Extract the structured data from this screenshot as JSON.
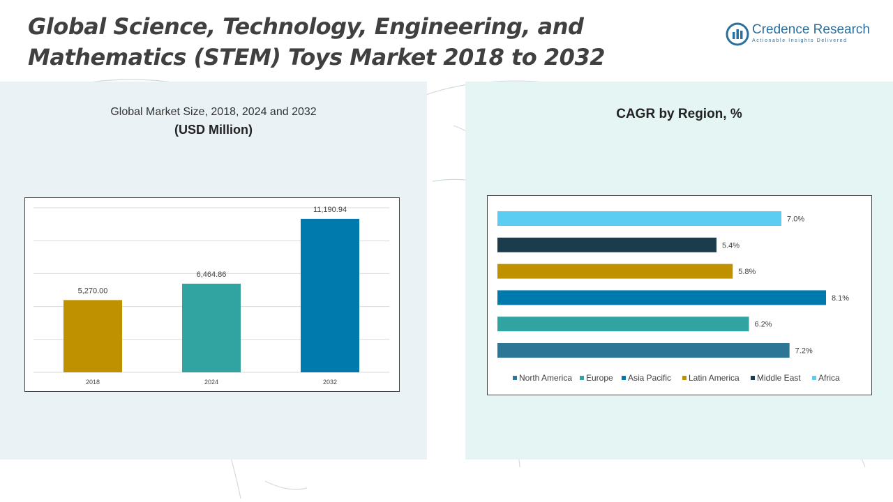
{
  "header": {
    "title_line1": "Global Science, Technology, Engineering, and",
    "title_line2": "Mathematics (STEM) Toys Market 2018 to 2032"
  },
  "logo": {
    "name": "Credence Research",
    "tagline": "Actionable Insights Delivered",
    "color": "#2d6f9c"
  },
  "left_panel": {
    "subtitle": "Global Market Size, 2018, 2024 and 2032",
    "unit": "(USD Million)"
  },
  "right_panel": {
    "title": "CAGR by Region, %"
  },
  "chart_data": [
    {
      "type": "bar",
      "categories": [
        "2018",
        "2024",
        "2032"
      ],
      "values": [
        5270.0,
        6464.86,
        11190.94
      ],
      "value_labels": [
        "5,270.00",
        "6,464.86",
        "11,190.94"
      ],
      "colors": [
        "#bf9000",
        "#31a3a0",
        "#0079ad"
      ],
      "title": "Global Market Size, 2018, 2024 and 2032",
      "ylabel": "(USD Million)",
      "ylim": [
        0,
        12000
      ],
      "grid": true
    },
    {
      "type": "bar",
      "orientation": "horizontal",
      "categories": [
        "North America",
        "Europe",
        "Asia Pacific",
        "Latin America",
        "Middle East",
        "Africa"
      ],
      "values": [
        7.2,
        6.2,
        8.1,
        5.8,
        5.4,
        7.0
      ],
      "value_labels": [
        "7.2%",
        "6.2%",
        "8.1%",
        "5.8%",
        "5.4%",
        "7.0%"
      ],
      "colors": [
        "#2e7696",
        "#31a3a0",
        "#0079ad",
        "#bf9000",
        "#1a3c4c",
        "#5bcdf3"
      ],
      "title": "CAGR by Region, %",
      "xlim": [
        0,
        8.1
      ],
      "legend": "bottom",
      "grid": false
    }
  ]
}
